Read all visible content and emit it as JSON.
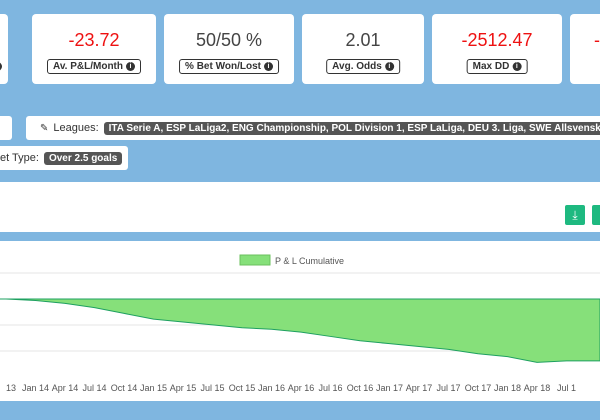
{
  "stats": [
    {
      "value": "-23.72",
      "label": "Av. P&L/Month",
      "tone": "neg"
    },
    {
      "value": "50/50 %",
      "label": "% Bet Won/Lost",
      "tone": "neu"
    },
    {
      "value": "2.01",
      "label": "Avg. Odds",
      "tone": "neu"
    },
    {
      "value": "-2512.47",
      "label": "Max DD",
      "tone": "neg"
    }
  ],
  "filters": {
    "leagues_label": "Leagues:",
    "leagues_value": "ITA Serie A, ESP LaLiga2, ENG Championship, POL Division 1, ESP LaLiga, DEU 3. Liga, SWE Allsvenskan,",
    "bet_type_label": "et Type:",
    "bet_type_value": "Over 2.5 goals"
  },
  "toolbar": {
    "download_icon": "download-icon"
  },
  "colors": {
    "accent_neg": "#e11111",
    "series_fill": "#86e07a",
    "background": "#7fb6e0",
    "button": "#1eb980"
  },
  "chart_data": {
    "type": "area",
    "legend": [
      "P & L Cumulative"
    ],
    "legend_position": "top-center",
    "grid": true,
    "x": [
      "13",
      "Jan 14",
      "Apr 14",
      "Jul 14",
      "Oct 14",
      "Jan 15",
      "Apr 15",
      "Jul 15",
      "Oct 15",
      "Jan 16",
      "Apr 16",
      "Jul 16",
      "Oct 16",
      "Jan 17",
      "Apr 17",
      "Jul 17",
      "Oct 17",
      "Jan 18",
      "Apr 18",
      "Jul 1"
    ],
    "x_tick_labels": [
      "13",
      "Jan 14",
      "Apr 14",
      "Jul 14",
      "Oct 14",
      "Jan 15",
      "Apr 15",
      "Jul 15",
      "Oct 15",
      "Jan 16",
      "Apr 16",
      "Jul 16",
      "Oct 16",
      "Jan 17",
      "Apr 17",
      "Jul 17",
      "Oct 17",
      "Jan 18",
      "Apr 18",
      "Jul 1"
    ],
    "series": [
      {
        "name": "P & L Cumulative",
        "values": [
          0,
          -1,
          -3,
          -6,
          -10,
          -14,
          -16,
          -18,
          -20,
          -21,
          -23,
          -26,
          -29,
          -31,
          -33,
          -35,
          -38,
          -40,
          -44,
          -43
        ]
      }
    ],
    "ylim": [
      -50,
      0
    ]
  }
}
